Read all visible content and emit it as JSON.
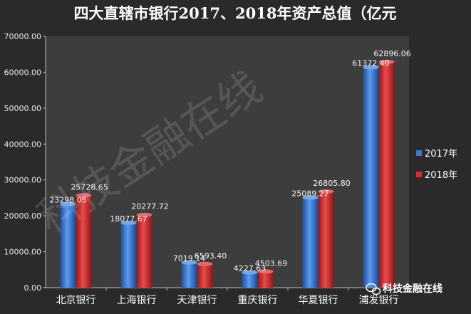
{
  "chart_data": {
    "type": "bar",
    "title": "四大直辖市银行2017、2018年资产总值（亿元",
    "categories": [
      "北京银行",
      "上海银行",
      "天津银行",
      "重庆银行",
      "华夏银行",
      "浦发银行"
    ],
    "series": [
      {
        "name": "2017年",
        "values": [
          23298.05,
          18077.67,
          7019.14,
          4227.63,
          25089.27,
          61372.4
        ],
        "labels": [
          "23298.05",
          "18077.67",
          "7019.14",
          "4227.63",
          "25089.27",
          "61372.40"
        ],
        "color": "#3a78d4"
      },
      {
        "name": "2018年",
        "values": [
          25728.65,
          20277.72,
          6593.4,
          4503.69,
          26805.8,
          62896.06
        ],
        "labels": [
          "25728.65",
          "20277.72",
          "6593.40",
          "4503.69",
          "26805.80",
          "62896.06"
        ],
        "color": "#d43030"
      }
    ],
    "yticks": [
      "0.00",
      "10000.00",
      "20000.00",
      "30000.00",
      "40000.00",
      "50000.00",
      "60000.00",
      "70000.00"
    ],
    "ylim": [
      0,
      70000
    ],
    "legend_position": "right",
    "grid": false
  },
  "watermark": "科技金融在线",
  "brand": {
    "name": "科技金融在线",
    "icon": "wechat-icon"
  },
  "colors": {
    "background": "#2a2a2a",
    "plot_area": "#3d3d3d",
    "axis": "#bbbbbb"
  }
}
